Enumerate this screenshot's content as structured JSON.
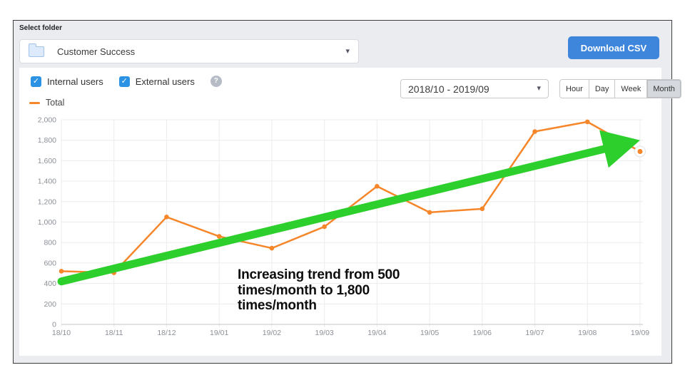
{
  "header": {
    "select_folder_label": "Select folder",
    "folder_select_value": "Customer Success",
    "download_button_label": "Download CSV"
  },
  "filters": {
    "internal_users_label": "Internal users",
    "internal_users_checked": true,
    "external_users_label": "External users",
    "external_users_checked": true
  },
  "controls": {
    "date_range_value": "2018/10 - 2019/09",
    "granularity_options": [
      "Hour",
      "Day",
      "Week",
      "Month"
    ],
    "granularity_selected": "Month"
  },
  "legend": {
    "label": "Total"
  },
  "icons": {
    "check": "✓",
    "caret": "▾",
    "help": "?"
  },
  "colors": {
    "accent_blue": "#3e86dc",
    "checkbox_blue": "#2b92e4",
    "series_orange": "#f6862a",
    "arrow_green": "#2ccf2c",
    "panel_gray": "#eaecf0"
  },
  "chart_data": {
    "type": "line",
    "title": "",
    "xlabel": "",
    "ylabel": "",
    "categories": [
      "18/10",
      "18/11",
      "18/12",
      "19/01",
      "19/02",
      "19/03",
      "19/04",
      "19/05",
      "19/06",
      "19/07",
      "19/08",
      "19/09"
    ],
    "series": [
      {
        "name": "Total",
        "color": "#f6862a",
        "values": [
          520,
          505,
          1050,
          860,
          745,
          955,
          1350,
          1095,
          1130,
          1885,
          1980,
          1690
        ]
      }
    ],
    "ylim": [
      0,
      2000
    ],
    "ytick_step": 200,
    "grid": true,
    "legend_position": "top-left",
    "highlight_last_point": true
  },
  "annotation": {
    "text_lines": [
      "Increasing trend from 500",
      "times/month to 1,800",
      "times/month"
    ],
    "arrow": {
      "color": "#2ccf2c",
      "from": {
        "x": 0,
        "value": 420
      },
      "to": {
        "x": 11,
        "value": 1800
      }
    }
  }
}
